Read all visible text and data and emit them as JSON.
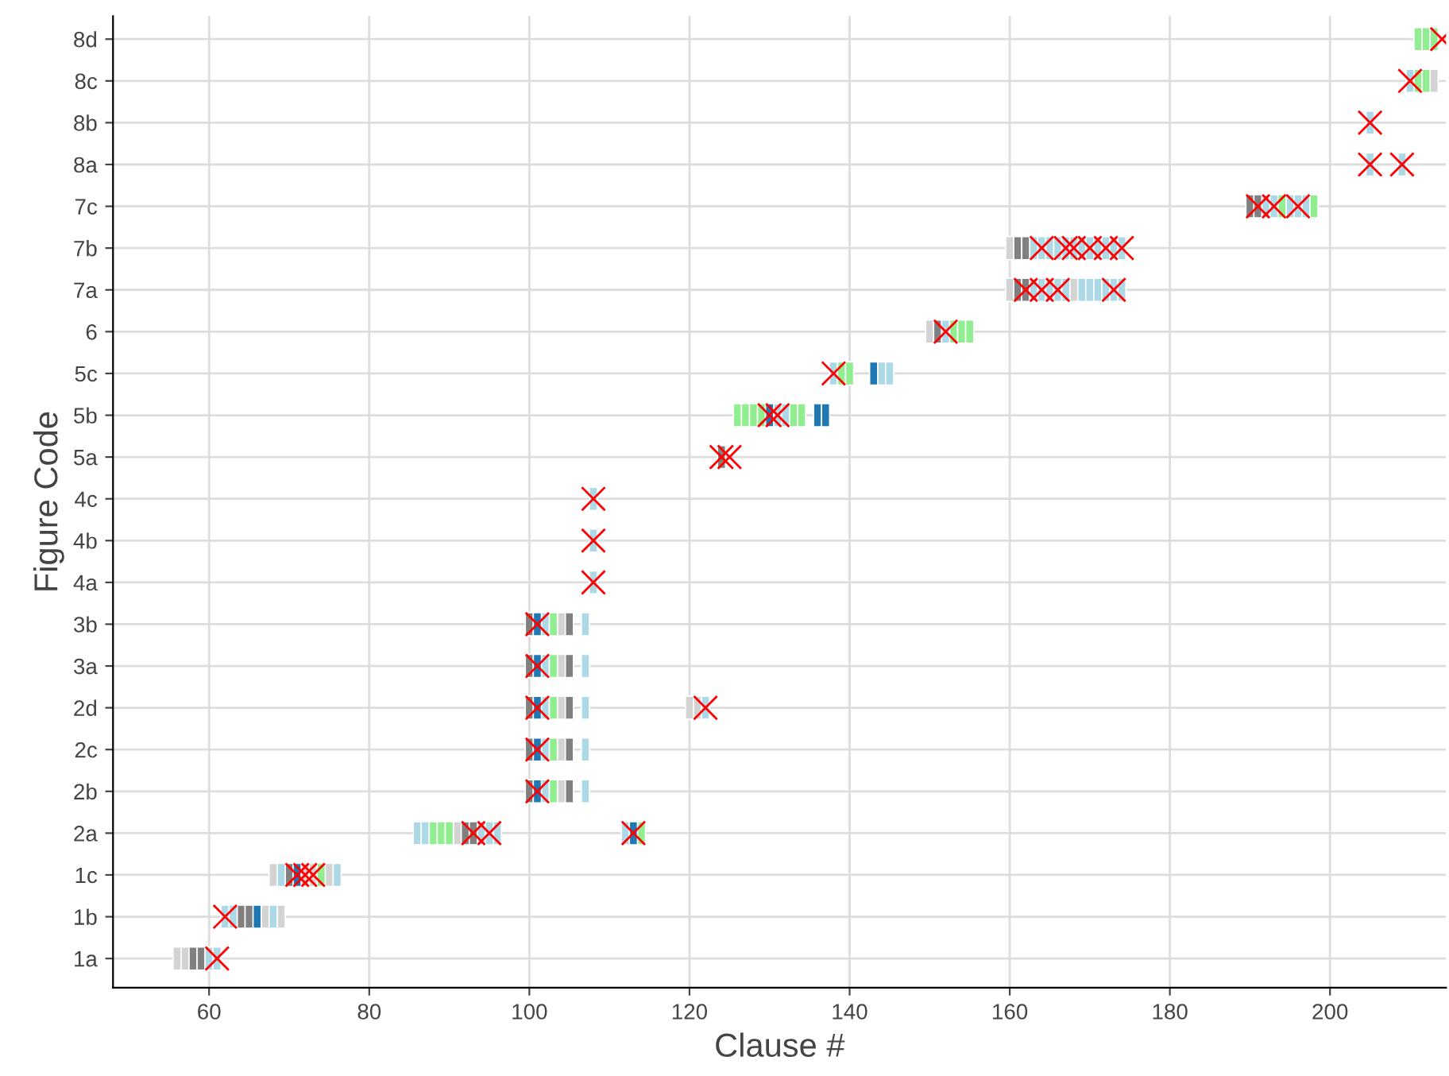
{
  "chart_data": {
    "type": "scatter",
    "orientation": "horizontal",
    "xlabel": "Clause #",
    "ylabel": "Figure Code",
    "categories": [
      "8d",
      "8c",
      "8b",
      "8a",
      "7c",
      "7b",
      "7a",
      "6",
      "5c",
      "5b",
      "5a",
      "4c",
      "4b",
      "4a",
      "3b",
      "3a",
      "2d",
      "2c",
      "2b",
      "2a",
      "1c",
      "1b",
      "1a"
    ],
    "xlim": [
      48,
      214.5
    ],
    "xticks": [
      60,
      80,
      100,
      120,
      140,
      160,
      180,
      200
    ],
    "grid": true,
    "series": [
      {
        "marker": "square",
        "color": "#d3d3d3",
        "values": [
          56,
          57,
          67,
          69,
          68,
          72,
          73,
          75,
          91,
          104,
          104,
          104,
          104,
          104,
          120,
          121,
          150,
          160,
          168,
          160,
          213
        ],
        "x": [
          "1a",
          "1a",
          "1b",
          "1b",
          "1c",
          "1c",
          "1c",
          "1c",
          "2a",
          "2b",
          "2c",
          "2d",
          "3a",
          "3b",
          "2d",
          "2d",
          "6",
          "7a",
          "7a",
          "7b",
          "8c"
        ]
      },
      {
        "marker": "square",
        "color": "#808080",
        "values": [
          58,
          59,
          64,
          65,
          70,
          92,
          93,
          100,
          100,
          100,
          100,
          100,
          105,
          105,
          105,
          105,
          105,
          124,
          151,
          161,
          162,
          161,
          162,
          190,
          191
        ],
        "x": [
          "1a",
          "1a",
          "1b",
          "1b",
          "1c",
          "2a",
          "2a",
          "2b",
          "2c",
          "2d",
          "3a",
          "3b",
          "2b",
          "2c",
          "2d",
          "3a",
          "3b",
          "5a",
          "6",
          "7a",
          "7a",
          "7b",
          "7b",
          "7c",
          "7c"
        ]
      },
      {
        "marker": "square",
        "color": "#add8e6",
        "values": [
          60,
          61,
          62,
          63,
          68,
          69,
          76,
          86,
          87,
          94,
          95,
          96,
          112,
          102,
          102,
          102,
          102,
          102,
          107,
          107,
          107,
          107,
          107,
          122,
          108,
          108,
          108,
          131,
          132,
          138,
          144,
          145,
          152,
          163,
          164,
          165,
          166,
          167,
          169,
          170,
          171,
          172,
          173,
          174,
          163,
          164,
          165,
          166,
          167,
          168,
          169,
          170,
          171,
          172,
          173,
          174,
          192,
          193,
          195,
          196,
          197,
          205,
          209,
          205,
          210
        ],
        "x": [
          "1a",
          "1a",
          "1b",
          "1b",
          "1b",
          "1c",
          "1c",
          "2a",
          "2a",
          "2a",
          "2a",
          "2a",
          "2a",
          "2b",
          "2c",
          "2d",
          "3a",
          "3b",
          "2b",
          "2c",
          "2d",
          "3a",
          "3b",
          "2d",
          "4a",
          "4b",
          "4c",
          "5b",
          "5b",
          "5c",
          "5c",
          "5c",
          "6",
          "7a",
          "7a",
          "7a",
          "7a",
          "7a",
          "7a",
          "7a",
          "7a",
          "7a",
          "7a",
          "7a",
          "7b",
          "7b",
          "7b",
          "7b",
          "7b",
          "7b",
          "7b",
          "7b",
          "7b",
          "7b",
          "7b",
          "7b",
          "7c",
          "7c",
          "7c",
          "7c",
          "7c",
          "8a",
          "8a",
          "8b",
          "8c"
        ]
      },
      {
        "marker": "square",
        "color": "#90ee90",
        "values": [
          74,
          88,
          89,
          90,
          114,
          103,
          103,
          103,
          103,
          103,
          126,
          127,
          128,
          129,
          133,
          134,
          139,
          140,
          153,
          154,
          155,
          194,
          198,
          211,
          212,
          211,
          212,
          213
        ],
        "x": [
          "1c",
          "2a",
          "2a",
          "2a",
          "2a",
          "2b",
          "2c",
          "2d",
          "3a",
          "3b",
          "5b",
          "5b",
          "5b",
          "5b",
          "5b",
          "5b",
          "5c",
          "5c",
          "6",
          "6",
          "6",
          "7c",
          "7c",
          "8c",
          "8c",
          "8d",
          "8d",
          "8d"
        ]
      },
      {
        "marker": "square",
        "color": "#1f77b4",
        "values": [
          66,
          71,
          113,
          101,
          101,
          101,
          101,
          101,
          130,
          136,
          137,
          143
        ],
        "x": [
          "1b",
          "1c",
          "2a",
          "2b",
          "2c",
          "2d",
          "3a",
          "3b",
          "5b",
          "5b",
          "5b",
          "5c"
        ]
      },
      {
        "marker": "cross",
        "color": "#ff0000",
        "values": [
          61,
          62,
          71,
          72,
          73,
          93,
          95,
          113,
          101,
          101,
          101,
          101,
          101,
          122,
          108,
          108,
          108,
          124,
          125,
          130,
          131,
          138,
          152,
          162,
          164,
          166,
          173,
          164,
          167,
          168,
          170,
          172,
          174,
          191,
          193,
          196,
          205,
          209,
          205,
          210,
          214
        ],
        "x": [
          "1a",
          "1b",
          "1c",
          "1c",
          "1c",
          "2a",
          "2a",
          "2a",
          "2b",
          "2c",
          "2d",
          "3a",
          "3b",
          "2d",
          "4a",
          "4b",
          "4c",
          "5a",
          "5a",
          "5b",
          "5b",
          "5c",
          "6",
          "7a",
          "7a",
          "7a",
          "7a",
          "7b",
          "7b",
          "7b",
          "7b",
          "7b",
          "7b",
          "7c",
          "7c",
          "7c",
          "8a",
          "8a",
          "8b",
          "8c",
          "8d"
        ]
      }
    ]
  }
}
